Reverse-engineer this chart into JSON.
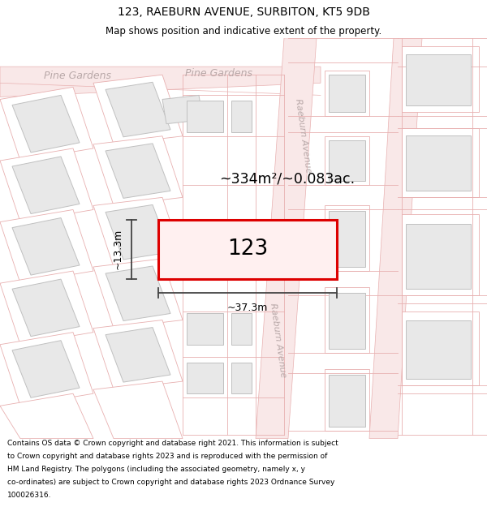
{
  "title": "123, RAEBURN AVENUE, SURBITON, KT5 9DB",
  "subtitle": "Map shows position and indicative extent of the property.",
  "footer": "Contains OS data © Crown copyright and database right 2021. This information is subject to Crown copyright and database rights 2023 and is reproduced with the permission of HM Land Registry. The polygons (including the associated geometry, namely x, y co-ordinates) are subject to Crown copyright and database rights 2023 Ordnance Survey 100026316.",
  "bg_color": "#ffffff",
  "road_fill": "#f9e8e8",
  "road_edge": "#e8b0b0",
  "bld_fill": "#e8e8e8",
  "bld_edge": "#c0c0c0",
  "prop_fill": "#fff0f0",
  "prop_edge": "#dd0000",
  "road_label": "#b8a8a8",
  "dim_col": "#444444",
  "area_text": "~334m²/~0.083ac.",
  "house_num": "123",
  "dim_w": "~37.3m",
  "dim_h": "~13.3m",
  "pine_left": "Pine Gardens",
  "pine_right": "Pine Gardens",
  "raeburn_top": "Raeburn Avenue",
  "raeburn_bot": "Raeburn Avenue"
}
